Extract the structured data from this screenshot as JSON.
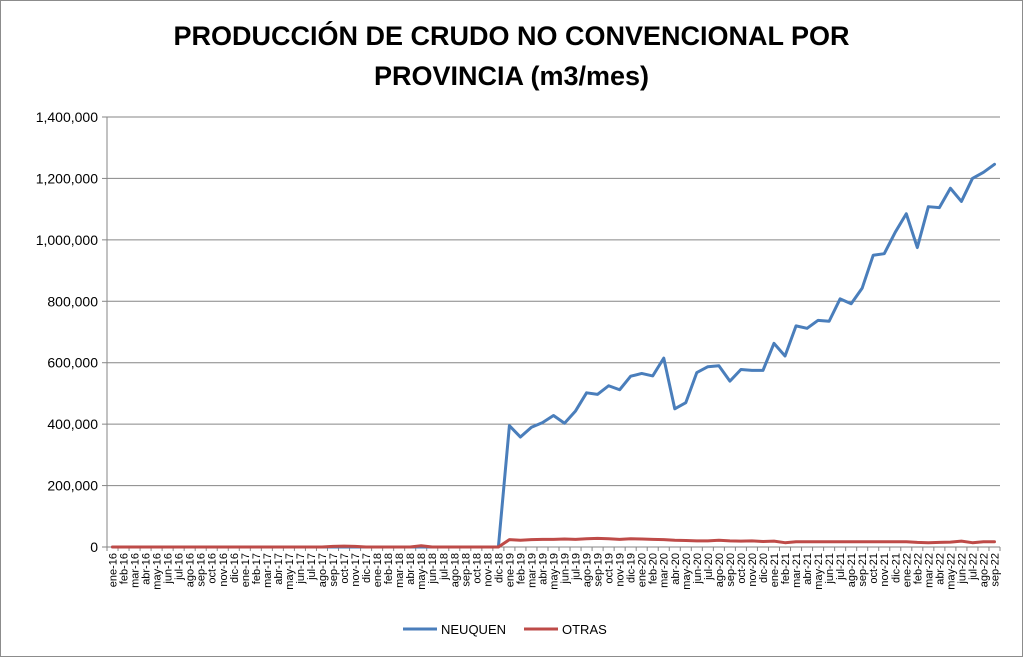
{
  "chart_data": {
    "type": "line",
    "title_line1": "PRODUCCIÓN DE CRUDO NO CONVENCIONAL POR",
    "title_line2": "PROVINCIA (m3/mes)",
    "xlabel": "",
    "ylabel": "",
    "ylim": [
      0,
      1400000
    ],
    "y_ticks": [
      "0",
      "200,000",
      "400,000",
      "600,000",
      "800,000",
      "1,000,000",
      "1,200,000",
      "1,400,000"
    ],
    "grid": "horizontal",
    "legend_position": "bottom",
    "categories": [
      "ene-16",
      "feb-16",
      "mar-16",
      "abr-16",
      "may-16",
      "jun-16",
      "jul-16",
      "ago-16",
      "sep-16",
      "oct-16",
      "nov-16",
      "dic-16",
      "ene-17",
      "feb-17",
      "mar-17",
      "abr-17",
      "may-17",
      "jun-17",
      "jul-17",
      "ago-17",
      "sep-17",
      "oct-17",
      "nov-17",
      "dic-17",
      "ene-18",
      "feb-18",
      "mar-18",
      "abr-18",
      "may-18",
      "jun-18",
      "jul-18",
      "ago-18",
      "sep-18",
      "oct-18",
      "nov-18",
      "dic-18",
      "ene-19",
      "feb-19",
      "mar-19",
      "abr-19",
      "may-19",
      "jun-19",
      "jul-19",
      "ago-19",
      "sep-19",
      "oct-19",
      "nov-19",
      "dic-19",
      "ene-20",
      "feb-20",
      "mar-20",
      "abr-20",
      "may-20",
      "jun-20",
      "jul-20",
      "ago-20",
      "sep-20",
      "oct-20",
      "nov-20",
      "dic-20",
      "ene-21",
      "feb-21",
      "mar-21",
      "abr-21",
      "may-21",
      "jun-21",
      "jul-21",
      "ago-21",
      "sep-21",
      "oct-21",
      "nov-21",
      "dic-21",
      "ene-22",
      "feb-22",
      "mar-22",
      "abr-22",
      "may-22",
      "jun-22",
      "jul-22",
      "ago-22",
      "sep-22"
    ],
    "series": [
      {
        "name": "NEUQUEN",
        "color": "#4a7ebb",
        "values": [
          0,
          0,
          0,
          0,
          0,
          0,
          0,
          0,
          0,
          0,
          0,
          0,
          0,
          0,
          0,
          0,
          0,
          0,
          0,
          0,
          0,
          0,
          0,
          0,
          0,
          0,
          0,
          0,
          0,
          0,
          0,
          0,
          0,
          0,
          0,
          0,
          395000,
          358000,
          390000,
          405000,
          428000,
          403000,
          443000,
          502000,
          497000,
          525000,
          512000,
          556000,
          565000,
          557000,
          615000,
          450000,
          470000,
          568000,
          587000,
          590000,
          540000,
          578000,
          575000,
          575000,
          663000,
          622000,
          720000,
          712000,
          738000,
          735000,
          808000,
          792000,
          843000,
          950000,
          955000,
          1025000,
          1085000,
          975000,
          1108000,
          1105000,
          1168000,
          1125000,
          1200000,
          1220000,
          1246000
        ]
      },
      {
        "name": "OTRAS",
        "color": "#be4b48",
        "values": [
          0,
          0,
          0,
          0,
          0,
          0,
          0,
          0,
          0,
          0,
          0,
          0,
          0,
          0,
          0,
          0,
          0,
          0,
          0,
          0,
          2000,
          3000,
          2000,
          0,
          0,
          0,
          0,
          0,
          4000,
          0,
          0,
          0,
          0,
          0,
          0,
          0,
          24000,
          22000,
          24000,
          25000,
          25000,
          26000,
          25000,
          27000,
          28000,
          27000,
          25000,
          27000,
          26000,
          25000,
          24000,
          22000,
          21000,
          20000,
          20000,
          22000,
          20000,
          19000,
          20000,
          18000,
          19000,
          14000,
          17000,
          17000,
          17000,
          17000,
          17000,
          17000,
          17000,
          17000,
          17000,
          17000,
          17000,
          15000,
          14000,
          15000,
          16000,
          19000,
          14000,
          17000,
          17000
        ]
      }
    ]
  }
}
